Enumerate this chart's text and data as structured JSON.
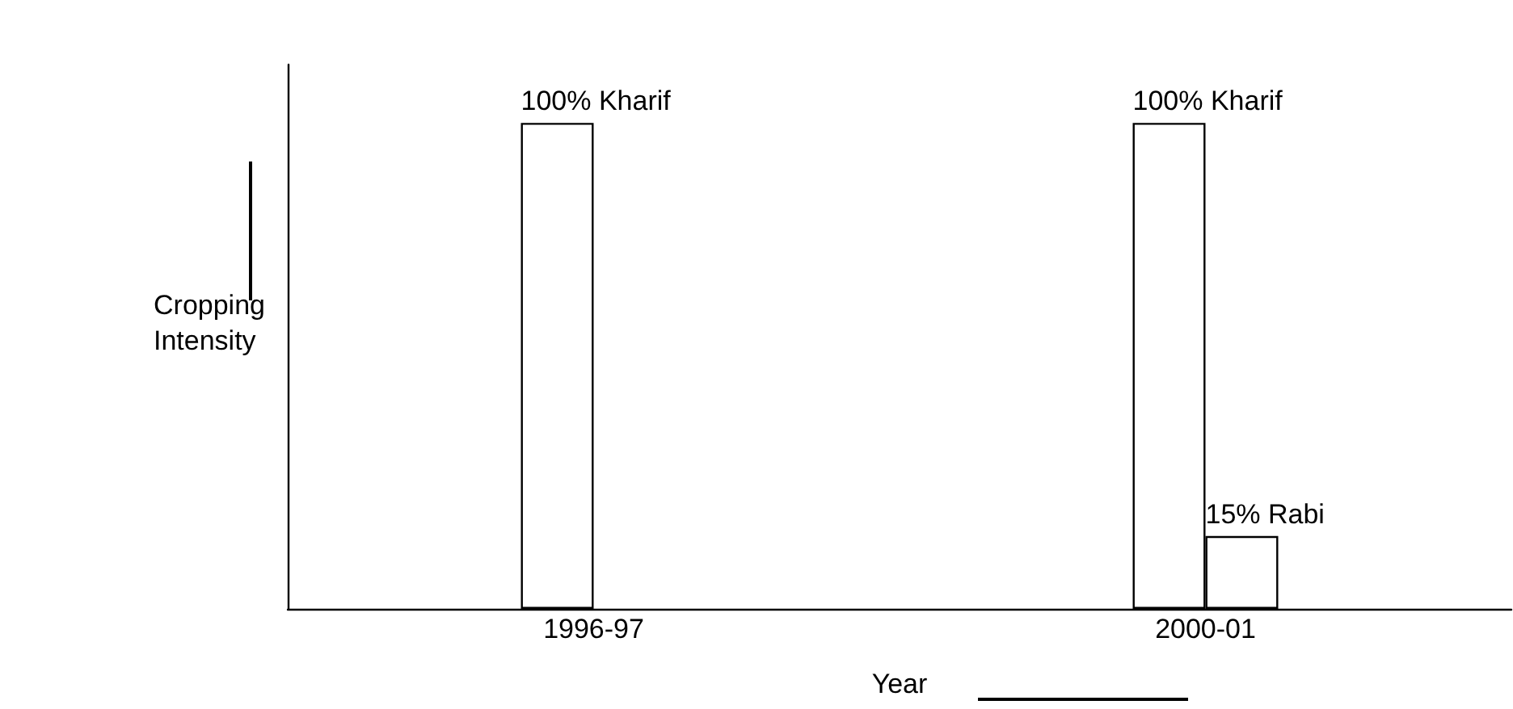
{
  "chart_data": {
    "type": "bar",
    "xlabel": "Year",
    "ylabel": "Cropping\nIntensity",
    "categories": [
      "1996-97",
      "2000-01"
    ],
    "series": [
      {
        "color": "#ffffff",
        "values": [
          100,
          100
        ],
        "value_labels": [
          "100% Kharif",
          "100% Kharif"
        ]
      },
      {
        "color": "#ffffff",
        "values": [
          null,
          15
        ],
        "value_labels": [
          null,
          "15% Rabi"
        ]
      }
    ]
  }
}
